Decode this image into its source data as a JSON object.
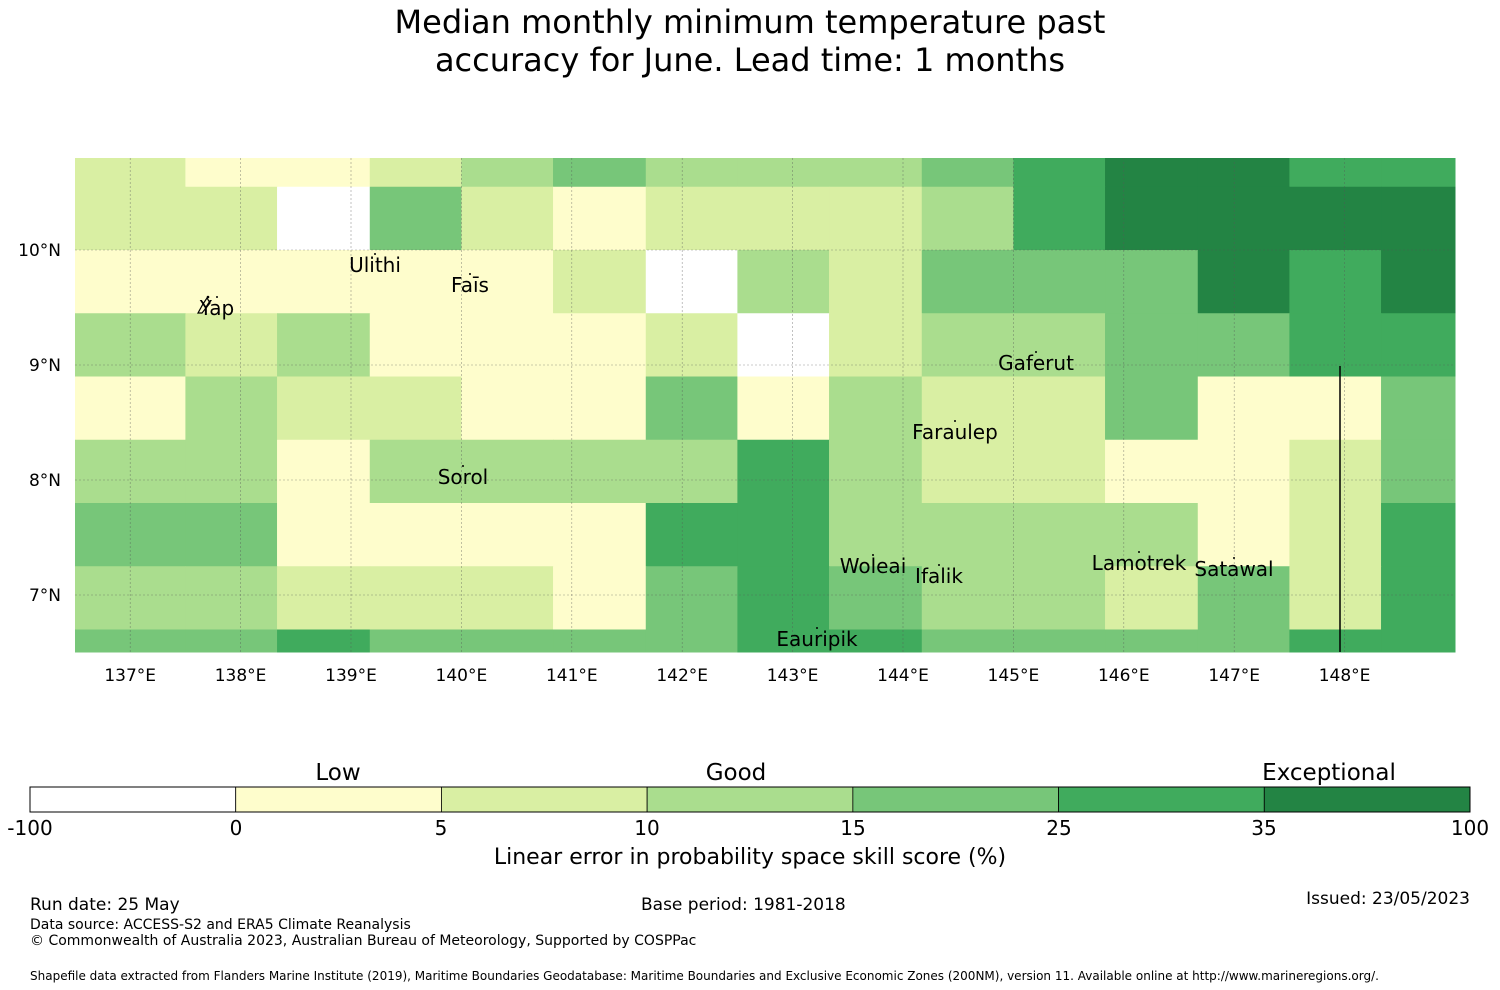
{
  "title": {
    "line1": "Median monthly minimum temperature past",
    "line2": "accuracy for June. Lead time: 1 months"
  },
  "map": {
    "lon_labels": [
      "137°E",
      "138°E",
      "139°E",
      "140°E",
      "141°E",
      "142°E",
      "143°E",
      "144°E",
      "145°E",
      "146°E",
      "147°E",
      "148°E"
    ],
    "lat_labels": [
      "10°N",
      "9°N",
      "8°N",
      "7°N"
    ],
    "places": [
      "Ulithi",
      "Yap",
      "Faīs",
      "Gaferut",
      "Faraulep",
      "Sorol",
      "Woleai",
      "Ifalik",
      "Lamotrek",
      "Satawal",
      "Eauripik"
    ]
  },
  "colors": {
    "c0": "#ffffff",
    "c1": "#fefdcc",
    "c2": "#d9efa3",
    "c3": "#aadd8e",
    "c4": "#77c679",
    "c5": "#40ab5d",
    "c6": "#238444"
  },
  "grid": {
    "lon_edges": [
      "136.5",
      "137.5",
      "138.33",
      "139.17",
      "140",
      "140.83",
      "141.67",
      "142.5",
      "143.33",
      "144.17",
      "145",
      "145.83",
      "146.67",
      "147.5",
      "148.33",
      "149"
    ],
    "lat_edges": [
      "10.8",
      "10.55",
      "10",
      "9.45",
      "8.9",
      "8.35",
      "7.8",
      "7.25",
      "6.7",
      "6.5"
    ],
    "rows": [
      [
        "c2",
        "c1",
        "c1",
        "c2",
        "c3",
        "c4",
        "c3",
        "c3",
        "c3",
        "c4",
        "c5",
        "c6",
        "c6",
        "c5",
        "c5",
        "c6"
      ],
      [
        "c2",
        "c2",
        "c0",
        "c4",
        "c2",
        "c1",
        "c2",
        "c2",
        "c2",
        "c3",
        "c5",
        "c6",
        "c6",
        "c6",
        "c6",
        "c5"
      ],
      [
        "c1",
        "c1",
        "c1",
        "c1",
        "c1",
        "c2",
        "c0",
        "c3",
        "c2",
        "c4",
        "c4",
        "c4",
        "c6",
        "c5",
        "c6",
        "c6"
      ],
      [
        "c3",
        "c2",
        "c3",
        "c1",
        "c1",
        "c1",
        "c2",
        "c0",
        "c2",
        "c3",
        "c3",
        "c4",
        "c4",
        "c5",
        "c5",
        "c6"
      ],
      [
        "c1",
        "c3",
        "c2",
        "c2",
        "c1",
        "c1",
        "c4",
        "c1",
        "c3",
        "c2",
        "c2",
        "c4",
        "c1",
        "c1",
        "c4",
        "c5"
      ],
      [
        "c3",
        "c3",
        "c1",
        "c3",
        "c3",
        "c3",
        "c3",
        "c5",
        "c3",
        "c2",
        "c2",
        "c1",
        "c1",
        "c2",
        "c4",
        "c4"
      ],
      [
        "c4",
        "c4",
        "c1",
        "c1",
        "c1",
        "c1",
        "c5",
        "c5",
        "c3",
        "c3",
        "c3",
        "c3",
        "c1",
        "c2",
        "c5",
        "c6"
      ],
      [
        "c3",
        "c3",
        "c2",
        "c2",
        "c2",
        "c1",
        "c4",
        "c5",
        "c4",
        "c3",
        "c3",
        "c2",
        "c4",
        "c2",
        "c5",
        "c4"
      ],
      [
        "c4",
        "c4",
        "c5",
        "c4",
        "c4",
        "c4",
        "c4",
        "c5",
        "c5",
        "c4",
        "c4",
        "c4",
        "c4",
        "c5",
        "c5",
        "c4"
      ]
    ]
  },
  "colorbar": {
    "categories": [
      "Low",
      "Good",
      "Exceptional"
    ],
    "ticks": [
      "-100",
      "0",
      "5",
      "10",
      "15",
      "25",
      "35",
      "100"
    ],
    "label": "Linear error in probability space skill score (%)"
  },
  "footer": {
    "run_date": "Run date: 25 May",
    "base_period": "Base period: 1981-2018",
    "issued": "Issued: 23/05/2023",
    "source": "Data source: ACCESS-S2 and ERA5 Climate Reanalysis",
    "copyright": "© Commonwealth of Australia 2023, Australian Bureau of Meteorology, Supported by COSPPac",
    "shapefile": "Shapefile data extracted from Flanders Marine Institute (2019), Maritime Boundaries Geodatabase: Maritime Boundaries and Exclusive Economic Zones (200NM), version 11. Available online at http://www.marineregions.org/."
  }
}
